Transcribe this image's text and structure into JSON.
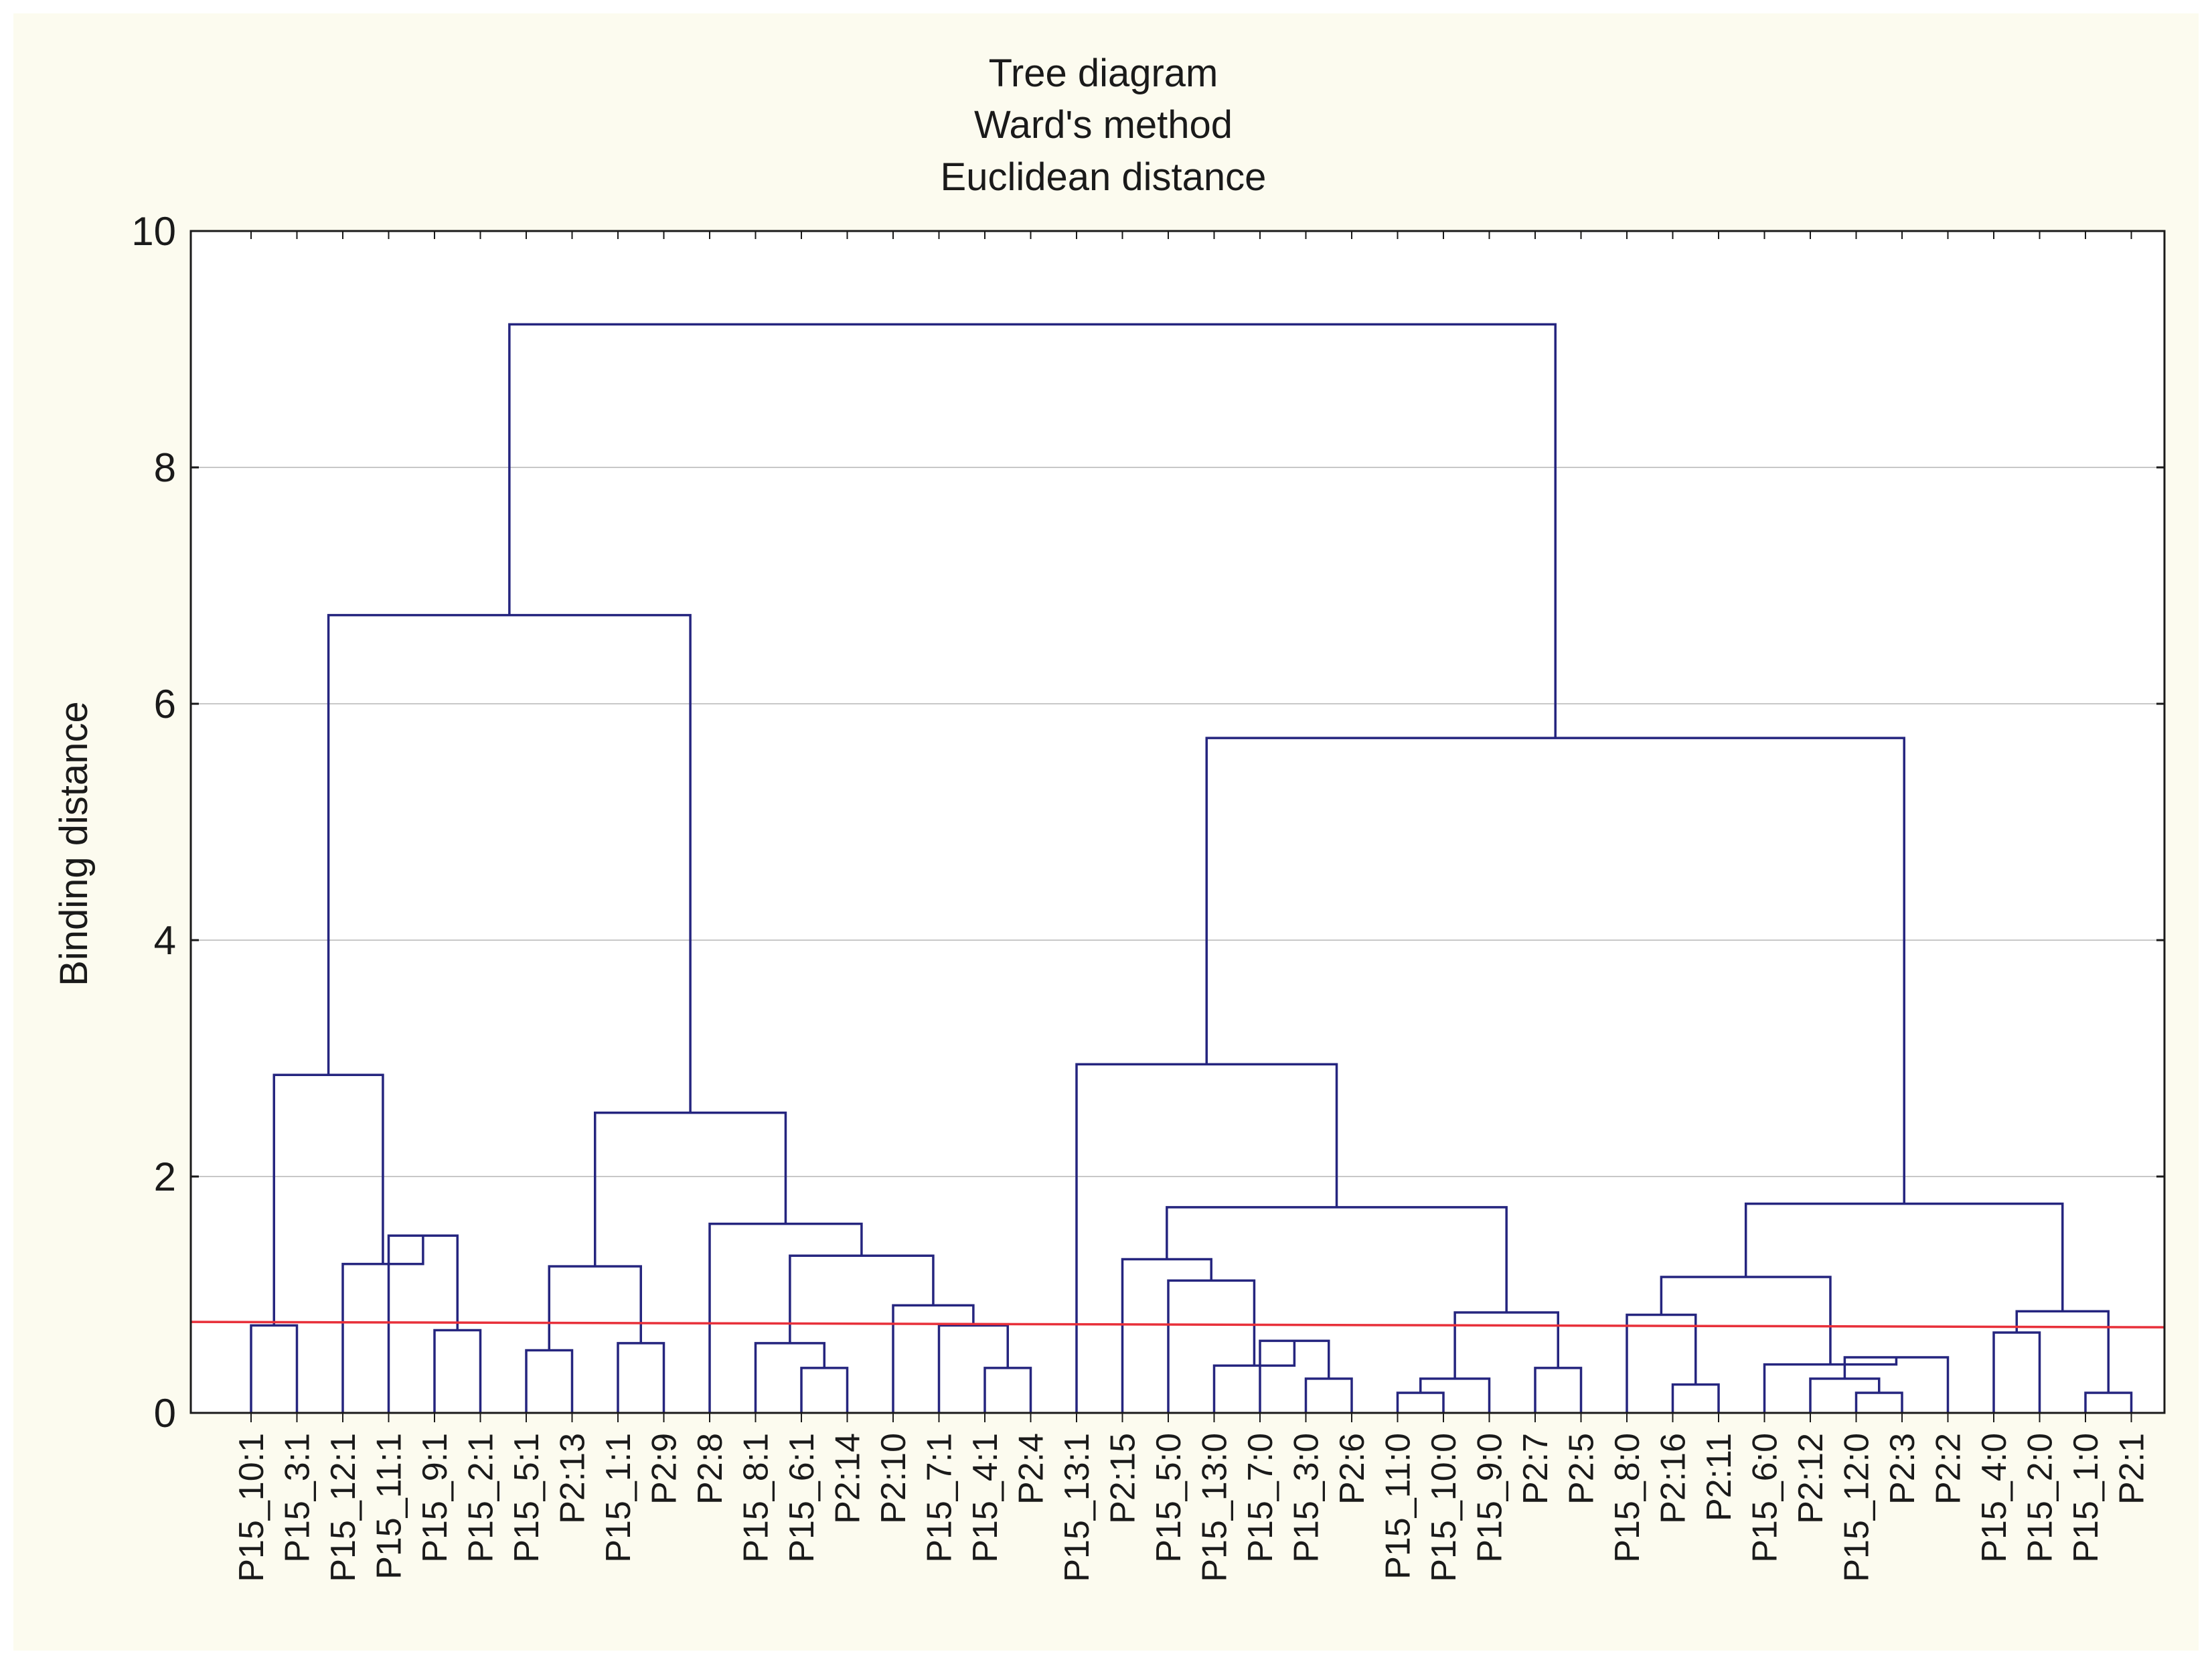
{
  "chart_data": {
    "type": "dendrogram",
    "title": [
      "Tree diagram",
      "Ward's method",
      "Euclidean distance"
    ],
    "ylabel": "Binding distance",
    "xlabel": "",
    "ylim": [
      0,
      10
    ],
    "yticks": [
      "0",
      "2",
      "4",
      "6",
      "8",
      "10"
    ],
    "grid": true,
    "cut_line": 0.77,
    "colors": {
      "tree": "#25257f",
      "cut_line": "#e8303a",
      "grid": "#c8c8c8",
      "axis": "#1a1a1a",
      "panel": "#ffffff",
      "background": "#fcfbef"
    },
    "leaves": [
      "P15_10:1",
      "P15_3:1",
      "P15_12:1",
      "P15_11:1",
      "P15_9:1",
      "P15_2:1",
      "P15_5:1",
      "P2:13",
      "P15_1:1",
      "P2:9",
      "P2:8",
      "P15_8:1",
      "P15_6:1",
      "P2:14",
      "P2:10",
      "P15_7:1",
      "P15_4:1",
      "P2:4",
      "P15_13:1",
      "P2:15",
      "P15_5:0",
      "P15_13:0",
      "P15_7:0",
      "P15_3:0",
      "P2:6",
      "P15_11:0",
      "P15_10:0",
      "P15_9:0",
      "P2:7",
      "P2:5",
      "P15_8:0",
      "P2:16",
      "P2:11",
      "P15_6:0",
      "P2:12",
      "P15_12:0",
      "P2:3",
      "P2:2",
      "P15_4:0",
      "P15_2:0",
      "P15_1:0",
      "P2:1"
    ],
    "merges": [
      {
        "id": "m1",
        "a": "L0",
        "b": "L1",
        "h": 0.74
      },
      {
        "id": "m2",
        "a": "L4",
        "b": "L5",
        "h": 0.7
      },
      {
        "id": "m3",
        "a": "L3",
        "b": "m2",
        "h": 1.5
      },
      {
        "id": "m4",
        "a": "L2",
        "b": "m3",
        "h": 1.26
      },
      {
        "id": "m5",
        "a": "m1",
        "b": "m4",
        "h": 2.86
      },
      {
        "id": "m6",
        "a": "L6",
        "b": "L7",
        "h": 0.53
      },
      {
        "id": "m7",
        "a": "L8",
        "b": "L9",
        "h": 0.59
      },
      {
        "id": "m8",
        "a": "m6",
        "b": "m7",
        "h": 1.24
      },
      {
        "id": "m9",
        "a": "L12",
        "b": "L13",
        "h": 0.38
      },
      {
        "id": "m10",
        "a": "L11",
        "b": "m9",
        "h": 0.59
      },
      {
        "id": "m11",
        "a": "L16",
        "b": "L17",
        "h": 0.38
      },
      {
        "id": "m12",
        "a": "L15",
        "b": "m11",
        "h": 0.74
      },
      {
        "id": "m13",
        "a": "L14",
        "b": "m12",
        "h": 0.91
      },
      {
        "id": "m14",
        "a": "m10",
        "b": "m13",
        "h": 1.33
      },
      {
        "id": "m15",
        "a": "L10",
        "b": "m14",
        "h": 1.6
      },
      {
        "id": "m16",
        "a": "m8",
        "b": "m15",
        "h": 2.54
      },
      {
        "id": "m17",
        "a": "m5",
        "b": "m16",
        "h": 6.75
      },
      {
        "id": "m18",
        "a": "L23",
        "b": "L24",
        "h": 0.29
      },
      {
        "id": "m19",
        "a": "L22",
        "b": "m18",
        "h": 0.61
      },
      {
        "id": "m20",
        "a": "L21",
        "b": "m19",
        "h": 0.4
      },
      {
        "id": "m21",
        "a": "L20",
        "b": "m20",
        "h": 1.12
      },
      {
        "id": "m22",
        "a": "L19",
        "b": "m21",
        "h": 1.3
      },
      {
        "id": "m23",
        "a": "L25",
        "b": "L26",
        "h": 0.17
      },
      {
        "id": "m24",
        "a": "m23",
        "b": "L27",
        "h": 0.29
      },
      {
        "id": "m25",
        "a": "L28",
        "b": "L29",
        "h": 0.38
      },
      {
        "id": "m26",
        "a": "m24",
        "b": "m25",
        "h": 0.85
      },
      {
        "id": "m27",
        "a": "m22",
        "b": "m26",
        "h": 1.74
      },
      {
        "id": "m28",
        "a": "L18",
        "b": "m27",
        "h": 2.95
      },
      {
        "id": "m29",
        "a": "L31",
        "b": "L32",
        "h": 0.24
      },
      {
        "id": "m30",
        "a": "L30",
        "b": "m29",
        "h": 0.83
      },
      {
        "id": "m31",
        "a": "L35",
        "b": "L36",
        "h": 0.17
      },
      {
        "id": "m32",
        "a": "L34",
        "b": "m31",
        "h": 0.29
      },
      {
        "id": "m33",
        "a": "m32",
        "b": "L37",
        "h": 0.47
      },
      {
        "id": "m34",
        "a": "L33",
        "b": "m33",
        "h": 0.41
      },
      {
        "id": "m35",
        "a": "m30",
        "b": "m34",
        "h": 1.15
      },
      {
        "id": "m36",
        "a": "L40",
        "b": "L41",
        "h": 0.17
      },
      {
        "id": "m37",
        "a": "L38",
        "b": "L39",
        "h": 0.68
      },
      {
        "id": "m38",
        "a": "m37",
        "b": "m36",
        "h": 0.86
      },
      {
        "id": "m39",
        "a": "m35",
        "b": "m38",
        "h": 1.77
      },
      {
        "id": "m40",
        "a": "m28",
        "b": "m39",
        "h": 5.71
      },
      {
        "id": "m41",
        "a": "m17",
        "b": "m40",
        "h": 9.21
      }
    ]
  }
}
